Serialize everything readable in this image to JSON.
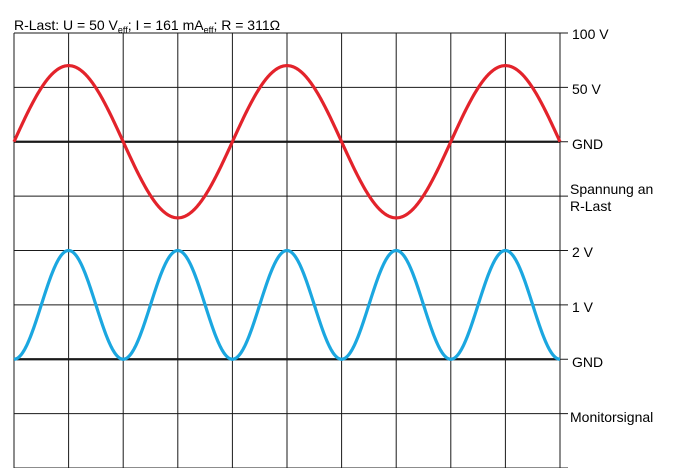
{
  "chart_data": {
    "type": "line",
    "title": {
      "prefix": "R-Last:  U = 50 V",
      "sub1": "eff",
      "mid": ";  I = 161 mA",
      "sub2": "eff",
      "suffix": ";  R = 311Ω"
    },
    "right_labels": {
      "top_100v": "100 V",
      "v50": "50 V",
      "gnd_top": "GND",
      "voltage_caption_1": "Spannung an",
      "voltage_caption_2": "R-Last",
      "v2": "2 V",
      "v1": "1 V",
      "gnd_bottom": "GND",
      "monitor_caption": "Monitorsignal"
    },
    "grid": {
      "divisions_x": 10,
      "divisions_y": 8
    },
    "series": [
      {
        "trace": "load-voltage",
        "color": "#e3232b",
        "shape": "sine",
        "baseline_volts": 0,
        "peak_volts": 70,
        "volts_per_division": 50,
        "cycles": 2.5,
        "phase_deg": 0
      },
      {
        "trace": "monitor-signal",
        "color": "#1ba7e0",
        "shape": "raised-cosine",
        "min_volts": 0,
        "max_volts": 2,
        "volts_per_division": 1,
        "cycles": 5,
        "phase_deg": 180
      }
    ],
    "colors": {
      "grid": "#1a1a1a",
      "gnd_line": "#1a1a1a"
    }
  }
}
